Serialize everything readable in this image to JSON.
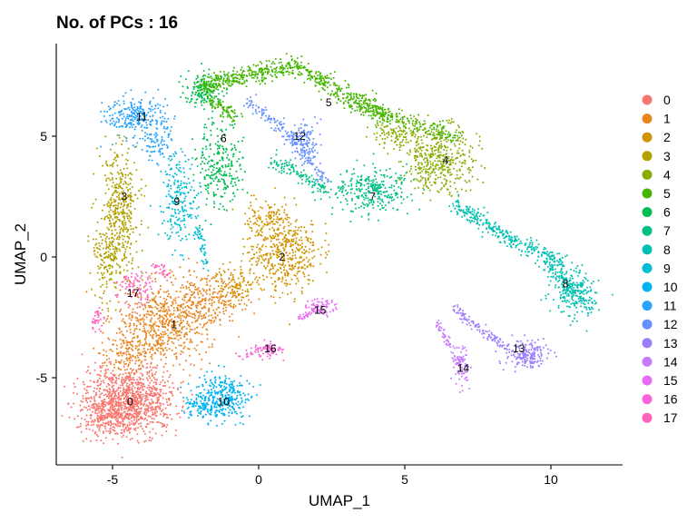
{
  "chart_data": {
    "type": "scatter",
    "title": "No. of PCs : 16",
    "xlabel": "UMAP_1",
    "ylabel": "UMAP_2",
    "xlim": [
      -7,
      12.5
    ],
    "ylim": [
      -8.5,
      8.5
    ],
    "xticks": [
      -5,
      0,
      5,
      10
    ],
    "yticks": [
      -5,
      0,
      5
    ],
    "xtick_labels": [
      "-5",
      "0",
      "5",
      "10"
    ],
    "ytick_labels": [
      "-5",
      "0",
      "5"
    ],
    "grid": false,
    "legend_position": "right",
    "clusters": [
      {
        "name": "0",
        "color": "#F8766D",
        "x": -4.4,
        "y": -6.0
      },
      {
        "name": "1",
        "color": "#E7851E",
        "x": -2.9,
        "y": -2.8
      },
      {
        "name": "2",
        "color": "#D09400",
        "x": 0.8,
        "y": 0.0
      },
      {
        "name": "3",
        "color": "#B2A100",
        "x": -4.6,
        "y": 2.5
      },
      {
        "name": "4",
        "color": "#89AC00",
        "x": 6.4,
        "y": 4.0
      },
      {
        "name": "5",
        "color": "#45B500",
        "x": 2.4,
        "y": 6.4
      },
      {
        "name": "6",
        "color": "#00BC51",
        "x": -1.2,
        "y": 4.9
      },
      {
        "name": "7",
        "color": "#00C087",
        "x": 3.9,
        "y": 2.5
      },
      {
        "name": "8",
        "color": "#00C0B2",
        "x": 10.5,
        "y": -1.1
      },
      {
        "name": "9",
        "color": "#00BCD6",
        "x": -2.8,
        "y": 2.3
      },
      {
        "name": "10",
        "color": "#00B3F2",
        "x": -1.2,
        "y": -6.0
      },
      {
        "name": "11",
        "color": "#29A3FF",
        "x": -4.0,
        "y": 5.8
      },
      {
        "name": "12",
        "color": "#6791FF",
        "x": 1.4,
        "y": 5.0
      },
      {
        "name": "13",
        "color": "#9C7DFF",
        "x": 8.9,
        "y": -3.8
      },
      {
        "name": "14",
        "color": "#C77CFF",
        "x": 7.0,
        "y": -4.6
      },
      {
        "name": "15",
        "color": "#E76BF3",
        "x": 2.1,
        "y": -2.2
      },
      {
        "name": "16",
        "color": "#FA62DB",
        "x": 0.4,
        "y": -3.8
      },
      {
        "name": "17",
        "color": "#FF62BC",
        "x": -4.3,
        "y": -1.5
      }
    ]
  }
}
